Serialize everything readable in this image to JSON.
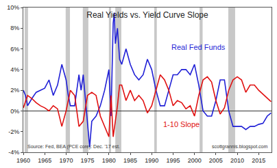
{
  "chart_data": {
    "type": "line",
    "title": "Real Yields vs. Yield Curve Slope",
    "source": "Source: Fed, BEA (PCE core): Dec. '17 est.",
    "credit": "scottgrannis.blogspot.com",
    "xlim": [
      1960,
      2018
    ],
    "xticks": [
      1960,
      1965,
      1970,
      1975,
      1980,
      1985,
      1990,
      1995,
      2000,
      2005,
      2010,
      2015
    ],
    "ylim": [
      -4,
      10
    ],
    "yticks": [
      {
        "value": -4,
        "label": "-4%"
      },
      {
        "value": -2,
        "label": "-2%"
      },
      {
        "value": 0,
        "label": "0%"
      },
      {
        "value": 2,
        "label": "2%"
      },
      {
        "value": 4,
        "label": "4%"
      },
      {
        "value": 6,
        "label": "6%"
      },
      {
        "value": 8,
        "label": "8%"
      },
      {
        "value": 10,
        "label": "10%"
      }
    ],
    "grid": false,
    "recessions": [
      [
        1960.3,
        1961.1
      ],
      [
        1969.9,
        1970.9
      ],
      [
        1973.9,
        1975.2
      ],
      [
        1980.0,
        1980.5
      ],
      [
        1981.5,
        1982.9
      ],
      [
        1990.6,
        1991.2
      ],
      [
        2001.2,
        2001.9
      ],
      [
        2007.9,
        2009.5
      ]
    ],
    "series": [
      {
        "name": "Real Fed Funds",
        "color": "#1f1fd6",
        "x": [
          1960,
          1960.5,
          1961,
          1962,
          1963,
          1964,
          1965,
          1966,
          1967,
          1968,
          1969,
          1970,
          1970.5,
          1971,
          1972,
          1973,
          1973.5,
          1974,
          1974.5,
          1975,
          1975.5,
          1976,
          1977,
          1978,
          1979,
          1980,
          1980.5,
          1981,
          1981.25,
          1981.5,
          1982,
          1982.5,
          1983,
          1984,
          1985,
          1986,
          1987,
          1988,
          1989,
          1990,
          1991,
          1992,
          1993,
          1994,
          1995,
          1996,
          1997,
          1998,
          1999,
          2000,
          2001,
          2002,
          2003,
          2004,
          2005,
          2006,
          2007,
          2008,
          2009,
          2010,
          2011,
          2012,
          2013,
          2014,
          2015,
          2016,
          2017,
          2017.9
        ],
        "values": [
          2.0,
          1.5,
          0.5,
          1.2,
          1.8,
          2.0,
          2.2,
          3.0,
          1.5,
          2.5,
          4.5,
          3.0,
          1.5,
          0.5,
          0.5,
          3.5,
          2.0,
          3.5,
          1.0,
          -1.5,
          -3.5,
          -1.0,
          -0.5,
          0.5,
          2.0,
          4.0,
          -0.5,
          8.5,
          9.5,
          6.5,
          8.0,
          5.0,
          4.5,
          6.0,
          4.5,
          3.5,
          3.0,
          3.5,
          5.0,
          4.0,
          2.0,
          0.5,
          0.5,
          2.0,
          3.5,
          3.5,
          4.0,
          4.0,
          3.5,
          4.5,
          2.5,
          0.0,
          -0.5,
          -0.5,
          1.0,
          3.0,
          3.0,
          0.0,
          -1.5,
          -1.5,
          -1.5,
          -1.8,
          -1.5,
          -1.5,
          -1.3,
          -1.2,
          -0.5,
          -0.2
        ]
      },
      {
        "name": "1-10 Slope",
        "color": "#e01010",
        "x": [
          1960,
          1961,
          1962,
          1963,
          1964,
          1965,
          1966,
          1967,
          1968,
          1969,
          1970,
          1971,
          1972,
          1973,
          1974,
          1975,
          1976,
          1977,
          1978,
          1979,
          1980,
          1980.5,
          1981,
          1981.5,
          1982,
          1982.5,
          1983,
          1984,
          1985,
          1986,
          1987,
          1988,
          1989,
          1990,
          1991,
          1992,
          1993,
          1994,
          1995,
          1996,
          1997,
          1998,
          1999,
          2000,
          2001,
          2002,
          2003,
          2004,
          2005,
          2006,
          2007,
          2008,
          2009,
          2010,
          2011,
          2012,
          2013,
          2014,
          2015,
          2016,
          2017,
          2017.9
        ],
        "values": [
          0.3,
          1.5,
          1.2,
          0.8,
          0.5,
          0.3,
          0.0,
          0.5,
          0.2,
          -1.5,
          0.0,
          2.0,
          1.5,
          -1.5,
          -1.0,
          1.5,
          1.8,
          1.5,
          -0.5,
          -1.5,
          -2.5,
          1.5,
          -2.5,
          -1.0,
          0.5,
          2.5,
          2.5,
          1.0,
          2.0,
          1.0,
          1.5,
          1.0,
          -0.2,
          0.5,
          2.0,
          3.5,
          3.0,
          2.0,
          0.5,
          1.0,
          0.8,
          0.2,
          0.5,
          -0.5,
          1.5,
          3.0,
          3.3,
          2.8,
          1.0,
          -0.3,
          0.3,
          2.0,
          3.0,
          3.3,
          3.0,
          1.8,
          2.5,
          2.5,
          2.0,
          1.6,
          1.2,
          0.9
        ]
      }
    ]
  }
}
